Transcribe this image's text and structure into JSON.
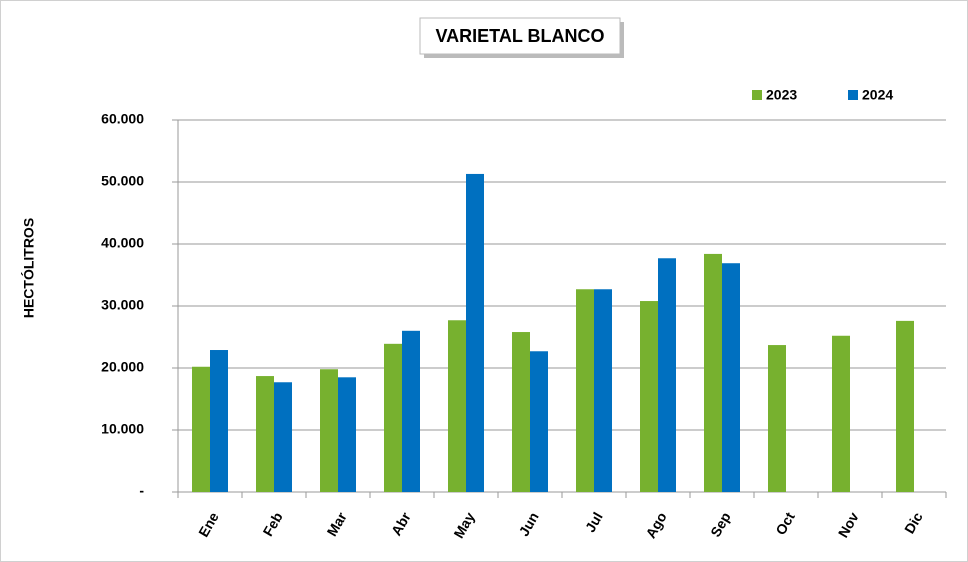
{
  "chart_data": {
    "type": "bar",
    "title": "VARIETAL BLANCO",
    "y_label": "HECTÓLITROS",
    "categories": [
      "Ene",
      "Feb",
      "Mar",
      "Abr",
      "May",
      "Jun",
      "Jul",
      "Ago",
      "Sep",
      "Oct",
      "Nov",
      "Dic"
    ],
    "series": [
      {
        "name": "2023",
        "color": "#77b12f",
        "values": [
          20200,
          18700,
          19800,
          23900,
          27700,
          25800,
          32700,
          30800,
          38400,
          23700,
          25200,
          27600
        ]
      },
      {
        "name": "2024",
        "color": "#0070c0",
        "values": [
          22900,
          17700,
          18500,
          26000,
          51300,
          22700,
          32700,
          37700,
          36900,
          null,
          null,
          null
        ]
      }
    ],
    "ylim": [
      0,
      60000
    ],
    "yticks": [
      {
        "value": 0,
        "label": "-"
      },
      {
        "value": 10000,
        "label": "10.000"
      },
      {
        "value": 20000,
        "label": "20.000"
      },
      {
        "value": 30000,
        "label": "30.000"
      },
      {
        "value": 40000,
        "label": "40.000"
      },
      {
        "value": 50000,
        "label": "50.000"
      },
      {
        "value": 60000,
        "label": "60.000"
      }
    ],
    "grid": true,
    "legend": "top-right"
  }
}
